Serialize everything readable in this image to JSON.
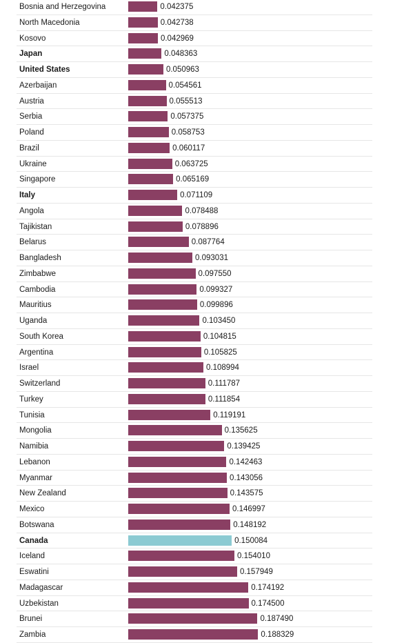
{
  "chart_data": {
    "type": "bar",
    "orientation": "horizontal",
    "colors": {
      "default": "#8a3f63",
      "highlight": "#8ccad2"
    },
    "highlighted": [
      "Canada"
    ],
    "bold_labels": [
      "Japan",
      "United States",
      "Italy",
      "Canada"
    ],
    "xlim": [
      0,
      0.2
    ],
    "categories": [
      "Bosnia and Herzegovina",
      "North Macedonia",
      "Kosovo",
      "Japan",
      "United States",
      "Azerbaijan",
      "Austria",
      "Serbia",
      "Poland",
      "Brazil",
      "Ukraine",
      "Singapore",
      "Italy",
      "Angola",
      "Tajikistan",
      "Belarus",
      "Bangladesh",
      "Zimbabwe",
      "Cambodia",
      "Mauritius",
      "Uganda",
      "South Korea",
      "Argentina",
      "Israel",
      "Switzerland",
      "Turkey",
      "Tunisia",
      "Mongolia",
      "Namibia",
      "Lebanon",
      "Myanmar",
      "New Zealand",
      "Mexico",
      "Botswana",
      "Canada",
      "Iceland",
      "Eswatini",
      "Madagascar",
      "Uzbekistan",
      "Brunei",
      "Zambia"
    ],
    "values": [
      0.042375,
      0.042738,
      0.042969,
      0.048363,
      0.050963,
      0.054561,
      0.055513,
      0.057375,
      0.058753,
      0.060117,
      0.063725,
      0.065169,
      0.071109,
      0.078488,
      0.078896,
      0.087764,
      0.093031,
      0.09755,
      0.099327,
      0.099896,
      0.10345,
      0.104815,
      0.105825,
      0.108994,
      0.111787,
      0.111854,
      0.119191,
      0.135625,
      0.139425,
      0.142463,
      0.143056,
      0.143575,
      0.146997,
      0.148192,
      0.150084,
      0.15401,
      0.157949,
      0.174192,
      0.1745,
      0.18749,
      0.188329
    ],
    "value_labels": [
      "0.042375",
      "0.042738",
      "0.042969",
      "0.048363",
      "0.050963",
      "0.054561",
      "0.055513",
      "0.057375",
      "0.058753",
      "0.060117",
      "0.063725",
      "0.065169",
      "0.071109",
      "0.078488",
      "0.078896",
      "0.087764",
      "0.093031",
      "0.097550",
      "0.099327",
      "0.099896",
      "0.103450",
      "0.104815",
      "0.105825",
      "0.108994",
      "0.111787",
      "0.111854",
      "0.119191",
      "0.135625",
      "0.139425",
      "0.142463",
      "0.143056",
      "0.143575",
      "0.146997",
      "0.148192",
      "0.150084",
      "0.154010",
      "0.157949",
      "0.174192",
      "0.174500",
      "0.187490",
      "0.188329"
    ]
  }
}
